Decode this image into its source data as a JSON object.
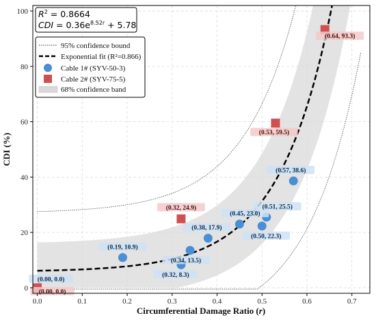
{
  "chart_data": {
    "type": "scatter",
    "xlabel": "Circumferential Damage Ratio (",
    "xlabel_symbol": "r",
    "xlabel_close": ")",
    "ylabel": "CDI (%)",
    "xlim": [
      -0.01,
      0.74
    ],
    "ylim": [
      -2,
      102
    ],
    "x_ticks": [
      0.0,
      0.1,
      0.2,
      0.3,
      0.4,
      0.5,
      0.6,
      0.7
    ],
    "x_tick_labels": [
      "0.0",
      "0.1",
      "0.2",
      "0.3",
      "0.4",
      "0.5",
      "0.6",
      "0.7"
    ],
    "y_ticks": [
      0,
      20,
      40,
      60,
      80,
      100
    ],
    "y_tick_labels": [
      "0",
      "20",
      "40",
      "60",
      "80",
      "100"
    ],
    "grid": true,
    "equation": {
      "r2_lhs": "R",
      "r2_sup": "2",
      "r2_rhs": " = 0.8664",
      "cdi_lhs": "CDI",
      "cdi_mid": " = 0.36e",
      "cdi_sup": "8.52r",
      "cdi_rhs": " + 5.78"
    },
    "fit": {
      "a": 0.36,
      "b": 8.52,
      "c": 5.78
    },
    "legend": {
      "position": "upper-left",
      "entries": [
        "95% confidence bound",
        "Exponential fit (R²=0.866)",
        "Cable 1# (SYV-50-3)",
        "Cable 2# (SYV-75-5)",
        "68% confidence band"
      ]
    },
    "series": [
      {
        "name": "Cable 1# (SYV-50-3)",
        "color": "#4a8fd4",
        "marker": "circle",
        "points": [
          {
            "x": 0.19,
            "y": 10.9,
            "label": "(0.19, 10.9)"
          },
          {
            "x": 0.32,
            "y": 8.3,
            "label": "(0.32, 8.3)"
          },
          {
            "x": 0.34,
            "y": 13.5,
            "label": "(0.34, 13.5)"
          },
          {
            "x": 0.38,
            "y": 17.9,
            "label": "(0.38, 17.9)"
          },
          {
            "x": 0.45,
            "y": 23.0,
            "label": "(0.45, 23.0)"
          },
          {
            "x": 0.5,
            "y": 22.3,
            "label": "(0.50, 22.3)"
          },
          {
            "x": 0.51,
            "y": 25.5,
            "label": "(0.51, 25.5)"
          },
          {
            "x": 0.57,
            "y": 38.6,
            "label": "(0.57, 38.6)"
          },
          {
            "x": 0.0,
            "y": 0.0,
            "label": "(0.00, 0.0)"
          }
        ]
      },
      {
        "name": "Cable 2# (SYV-75-5)",
        "color": "#d05050",
        "marker": "square",
        "points": [
          {
            "x": 0.0,
            "y": 0.0,
            "label": "(0.00, 0.0)"
          },
          {
            "x": 0.32,
            "y": 24.9,
            "label": "(0.32, 24.9)"
          },
          {
            "x": 0.53,
            "y": 59.5,
            "label": "(0.53, 59.5)"
          },
          {
            "x": 0.64,
            "y": 93.3,
            "label": "(0.64, 93.3)"
          }
        ]
      }
    ]
  }
}
